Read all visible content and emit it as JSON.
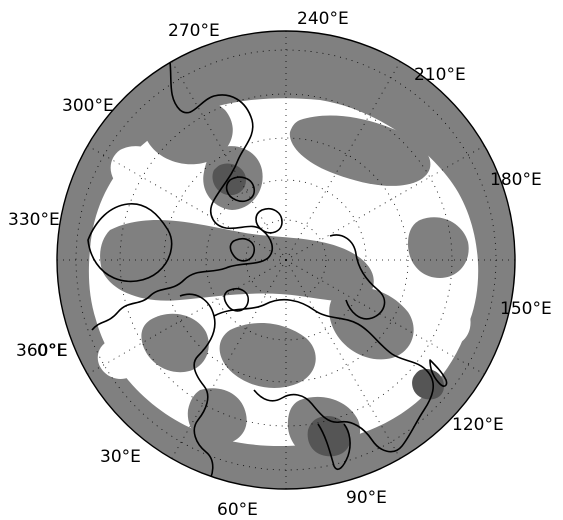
{
  "map": {
    "projection": "polar stereographic (north pole)",
    "field_fill_colors": {
      "background": "#ffffff",
      "mid_shade": "#808080",
      "dark_shade": "#555555",
      "coastline": "#000000",
      "grid": "#000000"
    },
    "longitude_labels": [
      {
        "id": "lon-240",
        "text": "240°E"
      },
      {
        "id": "lon-270",
        "text": "270°E"
      },
      {
        "id": "lon-210",
        "text": "210°E"
      },
      {
        "id": "lon-300",
        "text": "300°E"
      },
      {
        "id": "lon-180",
        "text": "180°E"
      },
      {
        "id": "lon-330",
        "text": "330°E"
      },
      {
        "id": "lon-150",
        "text": "150°E"
      },
      {
        "id": "lon-360",
        "text": "360°E"
      },
      {
        "id": "lon-0",
        "text": "0°E"
      },
      {
        "id": "lon-120",
        "text": "120°E"
      },
      {
        "id": "lon-30",
        "text": "30°E"
      },
      {
        "id": "lon-90",
        "text": "90°E"
      },
      {
        "id": "lon-60",
        "text": "60°E"
      }
    ]
  }
}
